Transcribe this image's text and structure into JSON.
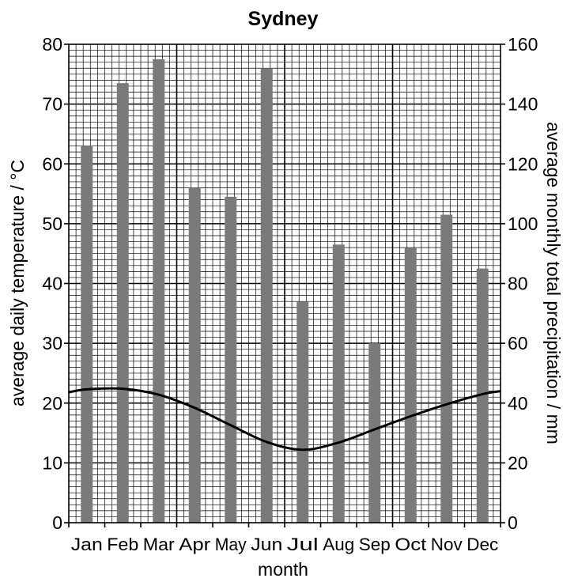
{
  "chart_data": {
    "type": "bar",
    "title": "Sydney",
    "xlabel": "month",
    "ylabel_left": "average daily temperature / °C",
    "ylabel_right": "average monthly total precipitation / mm",
    "categories": [
      "Jan",
      "Feb",
      "Mar",
      "Apr",
      "May",
      "Jun",
      "Jul",
      "Aug",
      "Sep",
      "Oct",
      "Nov",
      "Dec"
    ],
    "ylim_left": [
      0,
      80
    ],
    "ylim_right": [
      0,
      160
    ],
    "left_ticks": [
      0,
      10,
      20,
      30,
      40,
      50,
      60,
      70,
      80
    ],
    "right_ticks": [
      0,
      20,
      40,
      60,
      80,
      100,
      120,
      140,
      160
    ],
    "grid": true,
    "series": [
      {
        "kind": "bar",
        "axis": "right",
        "values": [
          126,
          147,
          155,
          112,
          109,
          152,
          74,
          93,
          60,
          92,
          103,
          85
        ],
        "color": "#7a7a7a"
      },
      {
        "kind": "line",
        "axis": "left",
        "values": [
          22.3,
          22.4,
          21.4,
          19.2,
          16.3,
          13.5,
          12.2,
          13.4,
          15.6,
          17.8,
          19.8,
          21.5
        ],
        "edge_values": [
          21.8,
          22.0
        ],
        "color": "#000000"
      }
    ]
  }
}
